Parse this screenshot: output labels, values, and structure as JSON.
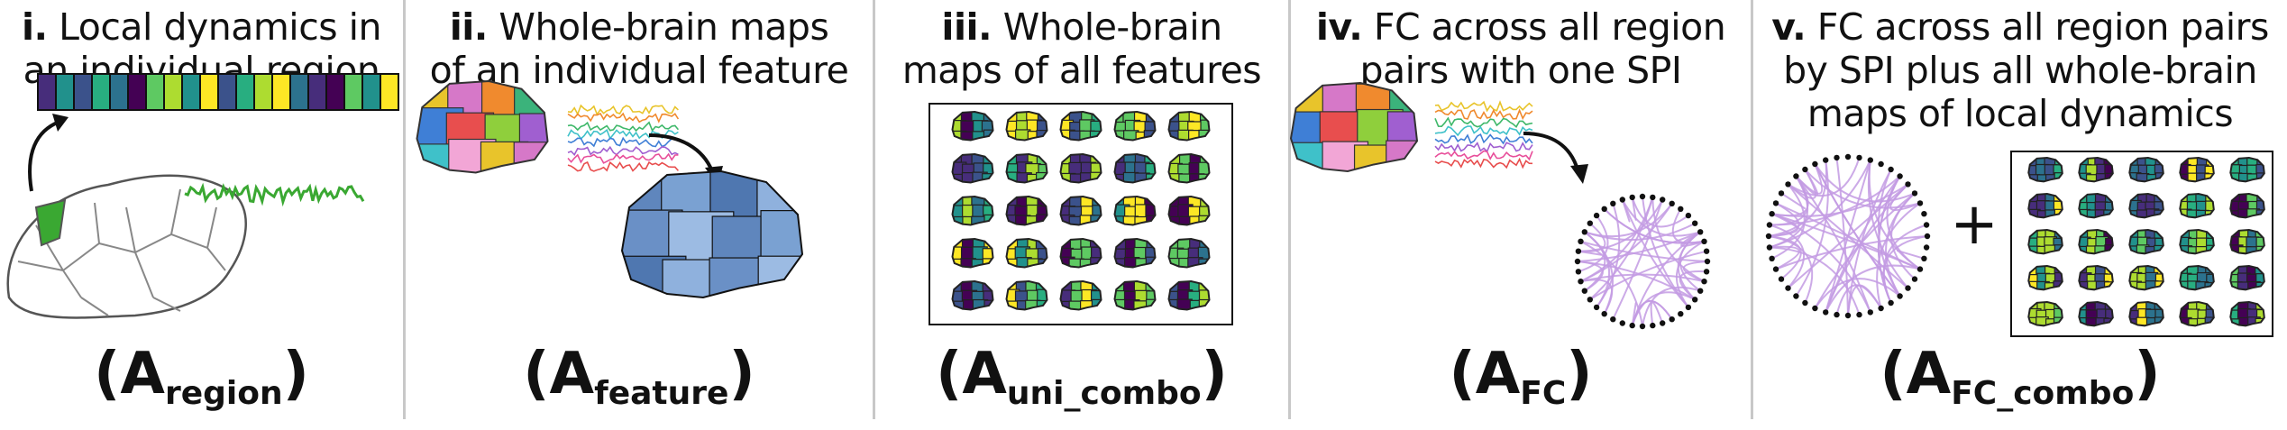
{
  "panels": [
    {
      "numeral": "i.",
      "title_lines": [
        "Local dynamics in",
        "an individual region"
      ],
      "formula_main": "A",
      "formula_sub": "region"
    },
    {
      "numeral": "ii.",
      "title_lines": [
        "Whole-brain maps",
        "of an individual feature"
      ],
      "formula_main": "A",
      "formula_sub": "feature"
    },
    {
      "numeral": "iii.",
      "title_lines": [
        "Whole-brain",
        "maps of all features"
      ],
      "formula_main": "A",
      "formula_sub": "uni_combo"
    },
    {
      "numeral": "iv.",
      "title_lines": [
        "FC across all region",
        "pairs with one SPI"
      ],
      "formula_main": "A",
      "formula_sub": "FC"
    },
    {
      "numeral": "v.",
      "title_lines": [
        "FC across all region pairs",
        "by SPI plus all whole-brain",
        "maps of local dynamics"
      ],
      "formula_main": "A",
      "formula_sub": "FC_combo"
    }
  ],
  "plus_sign": "+",
  "colors": {
    "highlight_region": "#3aa832",
    "timeseries_green": "#3aa832",
    "feature_blue": "#6b93c8",
    "network_edges": "#c39be3",
    "divider": "#c8c8c8",
    "viridis": [
      "#440154",
      "#472d7b",
      "#3b528b",
      "#2c728e",
      "#21918c",
      "#28ae80",
      "#5ec962",
      "#addc30",
      "#fde725"
    ],
    "parcel_palette": [
      "#e8c42b",
      "#d678c8",
      "#f08a2e",
      "#3bb37b",
      "#3f7fd6",
      "#e84e4e",
      "#8fcf3c",
      "#a05fd0",
      "#3fc1c9",
      "#f2a6d6"
    ],
    "trace_colors": [
      "#e8c42b",
      "#f08a2e",
      "#3fb86a",
      "#3fc1c9",
      "#3f7fd6",
      "#a05fd0",
      "#e84e9a",
      "#e84e4e"
    ]
  },
  "icons": [
    "curved-arrow-icon",
    "brain-parcellation-icon",
    "time-series-icon",
    "network-circle-icon"
  ]
}
